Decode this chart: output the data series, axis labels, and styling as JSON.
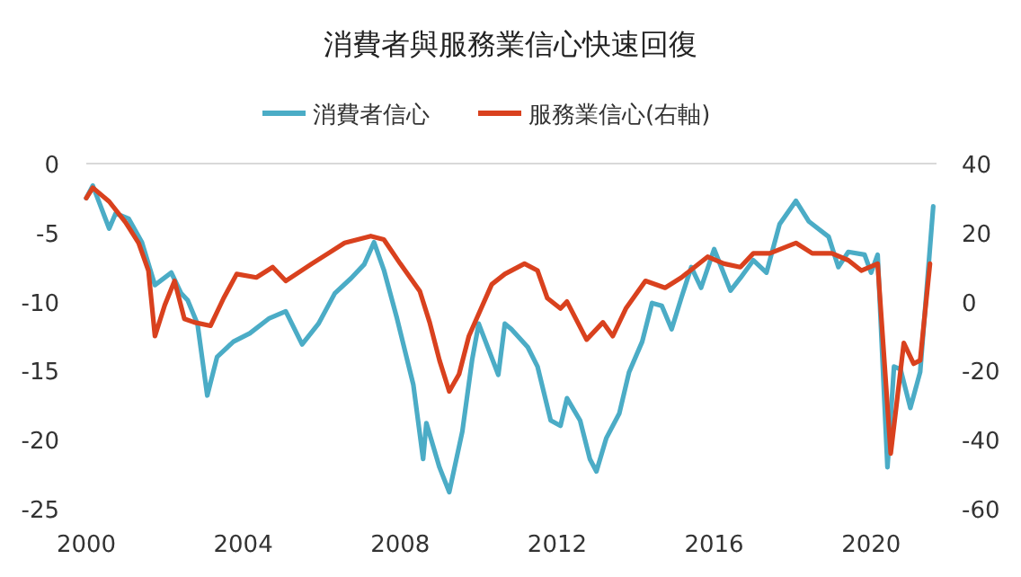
{
  "chart_data": {
    "type": "line",
    "title": "消費者與服務業信心快速回復",
    "legend": "top",
    "xlim": [
      "2000-01",
      "2021-09"
    ],
    "xticks": [
      "2000",
      "2004",
      "2008",
      "2012",
      "2016",
      "2020"
    ],
    "ylim": [
      -25,
      0
    ],
    "yticks": [
      -25,
      -20,
      -15,
      -10,
      -5,
      0
    ],
    "y2lim": [
      -60,
      40
    ],
    "y2ticks": [
      -60,
      -40,
      -20,
      0,
      20,
      40
    ],
    "ref_lines": [
      {
        "axis": "y",
        "value": 0,
        "color": "#d9d9d9"
      }
    ],
    "series": [
      {
        "name": "消費者信心",
        "color": "#4bacc6",
        "x": [
          "2000-01",
          "2000-03",
          "2000-08",
          "2000-10",
          "2001-02",
          "2001-06",
          "2001-10",
          "2002-03",
          "2002-06",
          "2002-08",
          "2002-11",
          "2003-02",
          "2003-05",
          "2003-10",
          "2004-03",
          "2004-09",
          "2005-02",
          "2005-07",
          "2005-12",
          "2006-05",
          "2006-10",
          "2007-02",
          "2007-05",
          "2007-08",
          "2007-12",
          "2008-05",
          "2008-08",
          "2008-09",
          "2009-01",
          "2009-04",
          "2009-08",
          "2009-11",
          "2010-01",
          "2010-07",
          "2010-09",
          "2010-11",
          "2011-04",
          "2011-07",
          "2011-11",
          "2012-02",
          "2012-04",
          "2012-08",
          "2012-11",
          "2013-01",
          "2013-04",
          "2013-08",
          "2013-11",
          "2014-03",
          "2014-06",
          "2014-09",
          "2014-12",
          "2015-03",
          "2015-06",
          "2015-09",
          "2016-01",
          "2016-06",
          "2016-09",
          "2017-01",
          "2017-05",
          "2017-09",
          "2018-02",
          "2018-06",
          "2018-12",
          "2019-03",
          "2019-06",
          "2019-11",
          "2020-01",
          "2020-03",
          "2020-06",
          "2020-08",
          "2020-10",
          "2021-01",
          "2021-04",
          "2021-08"
        ],
        "values": [
          -2.5,
          -1.6,
          -4.7,
          -3.6,
          -4.0,
          -5.7,
          -8.8,
          -7.9,
          -9.4,
          -9.9,
          -11.6,
          -16.8,
          -14.0,
          -12.9,
          -12.3,
          -11.2,
          -10.7,
          -13.1,
          -11.6,
          -9.4,
          -8.3,
          -7.3,
          -5.7,
          -7.7,
          -11.2,
          -16.0,
          -21.4,
          -18.8,
          -22.0,
          -23.8,
          -19.4,
          -14.2,
          -11.6,
          -15.3,
          -11.6,
          -12.0,
          -13.3,
          -14.7,
          -18.6,
          -19.0,
          -17.0,
          -18.6,
          -21.4,
          -22.3,
          -19.9,
          -18.1,
          -15.1,
          -12.9,
          -10.1,
          -10.3,
          -12.0,
          -9.7,
          -7.5,
          -9.0,
          -6.2,
          -9.2,
          -8.3,
          -7.0,
          -7.9,
          -4.4,
          -2.7,
          -4.2,
          -5.3,
          -7.5,
          -6.4,
          -6.6,
          -7.9,
          -6.6,
          -22.0,
          -14.7,
          -14.9,
          -17.7,
          -15.1,
          -3.1
        ]
      },
      {
        "name": "服務業信心(右軸)",
        "color": "#d9411e",
        "axis": "y2",
        "x": [
          "2000-01",
          "2000-03",
          "2000-08",
          "2001-01",
          "2001-05",
          "2001-08",
          "2001-10",
          "2002-01",
          "2002-04",
          "2002-07",
          "2002-10",
          "2003-03",
          "2003-07",
          "2003-11",
          "2004-05",
          "2004-10",
          "2005-02",
          "2005-10",
          "2006-03",
          "2006-08",
          "2007-04",
          "2007-08",
          "2008-01",
          "2008-07",
          "2008-10",
          "2009-01",
          "2009-04",
          "2009-07",
          "2009-10",
          "2010-05",
          "2010-09",
          "2011-03",
          "2011-07",
          "2011-10",
          "2012-02",
          "2012-04",
          "2012-10",
          "2013-03",
          "2013-06",
          "2013-10",
          "2014-04",
          "2014-10",
          "2015-03",
          "2015-11",
          "2016-04",
          "2016-09",
          "2017-01",
          "2017-06",
          "2018-02",
          "2018-07",
          "2019-01",
          "2019-06",
          "2019-10",
          "2020-03",
          "2020-07",
          "2020-11",
          "2021-02",
          "2021-04",
          "2021-07"
        ],
        "values": [
          30,
          33,
          29,
          23,
          17,
          9,
          -10,
          -1,
          6,
          -5,
          -6,
          -7,
          1,
          8,
          7,
          10,
          6,
          11,
          14,
          17,
          19,
          18,
          11,
          3,
          -6,
          -17,
          -26,
          -21,
          -10,
          5,
          8,
          11,
          9,
          1,
          -2,
          0,
          -11,
          -6,
          -10,
          -2,
          6,
          4,
          7,
          13,
          11,
          10,
          14,
          14,
          17,
          14,
          14,
          12,
          9,
          11,
          -44,
          -12,
          -18,
          -17,
          11
        ]
      }
    ]
  }
}
